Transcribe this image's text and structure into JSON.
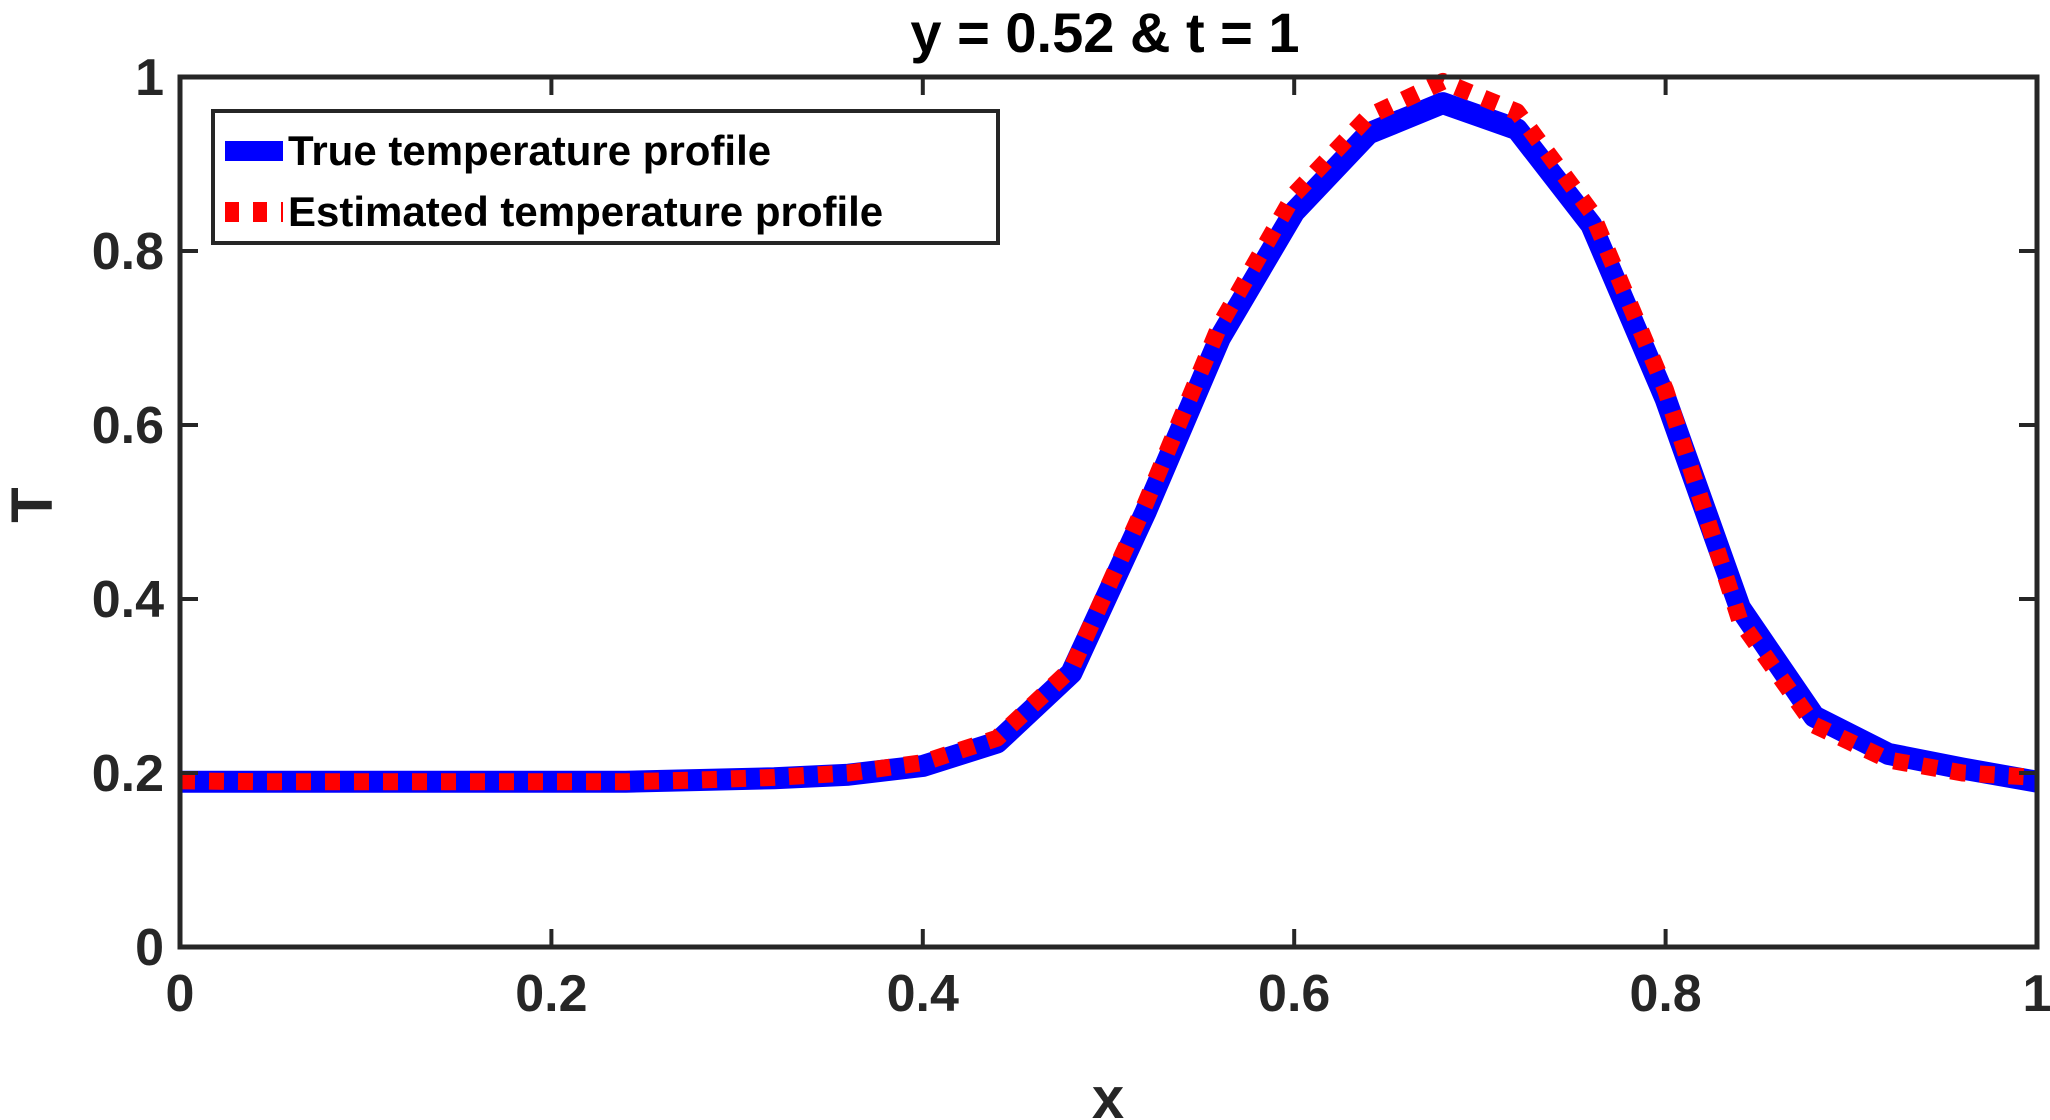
{
  "chart_data": {
    "type": "line",
    "title": "y = 0.52 & t = 1",
    "xlabel": "x",
    "ylabel": "T",
    "xlim": [
      0,
      1
    ],
    "ylim": [
      0,
      1
    ],
    "grid": false,
    "legend_position": "top-left",
    "xticks": [
      0,
      0.2,
      0.4,
      0.6,
      0.8,
      1
    ],
    "xtick_labels": [
      "0",
      "0.2",
      "0.4",
      "0.6",
      "0.8",
      "1"
    ],
    "yticks": [
      0,
      0.2,
      0.4,
      0.6,
      0.8,
      1
    ],
    "ytick_labels": [
      "0",
      "0.2",
      "0.4",
      "0.6",
      "0.8",
      "1"
    ],
    "series": [
      {
        "name": "True temperature profile",
        "color": "#0000ff",
        "style": "solid",
        "x": [
          0,
          0.04,
          0.08,
          0.12,
          0.16,
          0.2,
          0.24,
          0.28,
          0.32,
          0.36,
          0.4,
          0.44,
          0.48,
          0.52,
          0.56,
          0.6,
          0.64,
          0.68,
          0.72,
          0.76,
          0.8,
          0.84,
          0.88,
          0.92,
          0.96,
          1
        ],
        "y": [
          0.19,
          0.19,
          0.19,
          0.19,
          0.19,
          0.19,
          0.19,
          0.192,
          0.194,
          0.198,
          0.208,
          0.235,
          0.315,
          0.5,
          0.7,
          0.845,
          0.935,
          0.97,
          0.94,
          0.83,
          0.63,
          0.39,
          0.265,
          0.222,
          0.205,
          0.19
        ]
      },
      {
        "name": "Estimated temperature profile",
        "color": "#ff0000",
        "style": "dotted",
        "x": [
          0,
          0.04,
          0.08,
          0.12,
          0.16,
          0.2,
          0.24,
          0.28,
          0.32,
          0.36,
          0.4,
          0.44,
          0.48,
          0.52,
          0.56,
          0.6,
          0.64,
          0.68,
          0.72,
          0.76,
          0.8,
          0.84,
          0.88,
          0.92,
          0.96,
          1
        ],
        "y": [
          0.191,
          0.19,
          0.19,
          0.19,
          0.19,
          0.19,
          0.19,
          0.192,
          0.195,
          0.2,
          0.212,
          0.24,
          0.32,
          0.51,
          0.715,
          0.865,
          0.955,
          0.995,
          0.96,
          0.845,
          0.64,
          0.375,
          0.255,
          0.215,
          0.2,
          0.195
        ]
      }
    ]
  }
}
